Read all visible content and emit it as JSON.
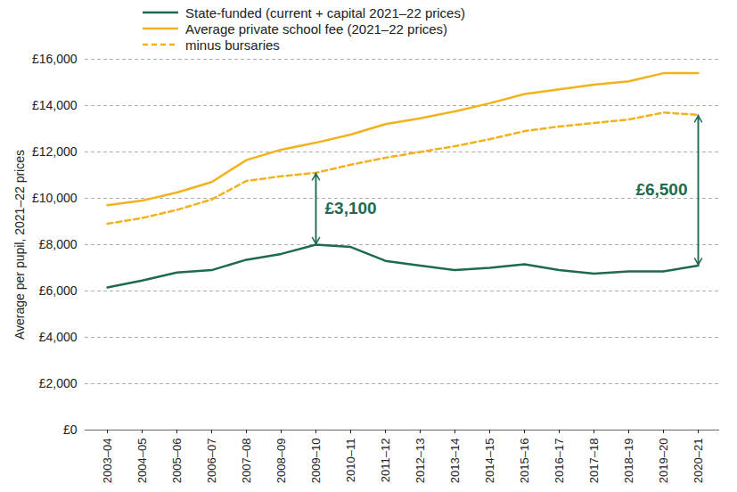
{
  "chart_data": {
    "type": "line",
    "y_label": "Average per pupil, 2021–22 prices",
    "categories": [
      "2003–04",
      "2004–05",
      "2005–06",
      "2006–07",
      "2007–08",
      "2008–09",
      "2009–10",
      "2010–11",
      "2011–12",
      "2012–13",
      "2013–14",
      "2014–15",
      "2015–16",
      "2016–17",
      "2017–18",
      "2018–19",
      "2019–20",
      "2020–21"
    ],
    "series": [
      {
        "name": "State-funded (current + capital 2021–22 prices)",
        "color": "#1d6b4c",
        "line_style": "solid",
        "values": [
          6150,
          6450,
          6800,
          6900,
          7350,
          7600,
          8000,
          7900,
          7300,
          7100,
          6900,
          7000,
          7150,
          6900,
          6750,
          6850,
          6850,
          7100
        ]
      },
      {
        "name": "Average private school fee (2021–22 prices)",
        "color": "#f2b21b",
        "line_style": "solid",
        "values": [
          9700,
          9900,
          10250,
          10700,
          11650,
          12100,
          12400,
          12750,
          13200,
          13450,
          13750,
          14100,
          14500,
          14700,
          14900,
          15050,
          15400,
          15400
        ]
      },
      {
        "name": "minus bursaries",
        "color": "#f2b21b",
        "line_style": "dashed",
        "values": [
          8900,
          9150,
          9500,
          9950,
          10750,
          10950,
          11100,
          11450,
          11750,
          12000,
          12250,
          12550,
          12900,
          13100,
          13250,
          13400,
          13700,
          13600
        ]
      }
    ],
    "annotations": [
      {
        "x": "2009–10",
        "y1": 8000,
        "y2": 11100,
        "label": "£3,100",
        "color": "#1d6b4c"
      },
      {
        "x": "2020–21",
        "y1": 7100,
        "y2": 13600,
        "label": "£6,500",
        "color": "#1d6b4c"
      }
    ],
    "ylim": [
      0,
      16000
    ],
    "yticks": [
      {
        "value": 0,
        "label": "£0"
      },
      {
        "value": 2000,
        "label": "£2,000"
      },
      {
        "value": 4000,
        "label": "£4,000"
      },
      {
        "value": 6000,
        "label": "£6,000"
      },
      {
        "value": 8000,
        "label": "£8,000"
      },
      {
        "value": 10000,
        "label": "£10,000"
      },
      {
        "value": 12000,
        "label": "£12,000"
      },
      {
        "value": 14000,
        "label": "£14,000"
      },
      {
        "value": 16000,
        "label": "£16,000"
      }
    ],
    "grid": true,
    "legend": "top-left"
  }
}
